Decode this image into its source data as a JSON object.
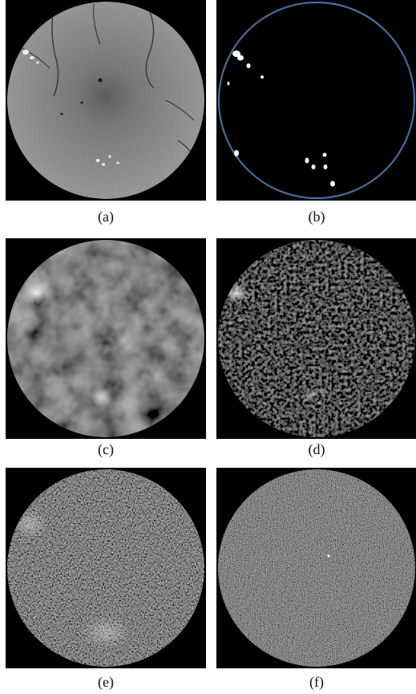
{
  "figure": {
    "panels": [
      {
        "id": "a",
        "caption": "(a)",
        "content": "fundus-image"
      },
      {
        "id": "b",
        "caption": "(b)",
        "content": "lesion-mask"
      },
      {
        "id": "c",
        "caption": "(c)",
        "content": "filtered-response-smooth"
      },
      {
        "id": "d",
        "caption": "(d)",
        "content": "filtered-response-sparse"
      },
      {
        "id": "e",
        "caption": "(e)",
        "content": "filtered-response-noisy"
      },
      {
        "id": "f",
        "caption": "(f)",
        "content": "filtered-response-noise"
      }
    ],
    "colors": {
      "background": "#000000",
      "mask_circle": "#4a6b9a",
      "lesion": "#ffffff"
    }
  }
}
